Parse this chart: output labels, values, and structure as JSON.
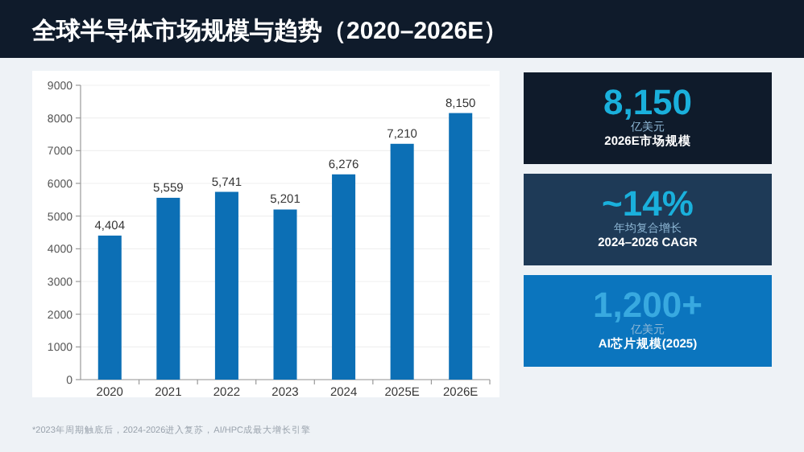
{
  "chart_data": [
    {
      "type": "bar",
      "title": "全球半导体市场规模与趋势（2020–2026E）",
      "categories": [
        "2020",
        "2021",
        "2022",
        "2023",
        "2024",
        "2025E",
        "2026E"
      ],
      "values": [
        4404,
        5559,
        5741,
        5201,
        6276,
        7210,
        8150
      ],
      "value_labels": [
        "4,404",
        "5,559",
        "5,741",
        "5,201",
        "6,276",
        "7,210",
        "8,150"
      ],
      "color": "#0c6fb5",
      "ylim": [
        0,
        9000
      ],
      "yticks": [
        0,
        1000,
        2000,
        3000,
        4000,
        5000,
        6000,
        7000,
        8000,
        9000
      ],
      "grid": "y",
      "annotations": [
        "*2023年周期触底后，2024-2026进入复苏，AI/HPC成最大增长引擎"
      ]
    },
    {
      "type": "other",
      "title": "8,150",
      "annotations": [
        "亿美元",
        "2026E市场规模"
      ],
      "color": "#0f1b2b"
    },
    {
      "type": "other",
      "title": "~14%",
      "annotations": [
        "年均复合增长",
        "2024–2026 CAGR"
      ],
      "color": "#1e3a57"
    },
    {
      "type": "other",
      "title": "1,200+",
      "annotations": [
        "亿美元",
        "AI芯片规模(2025)"
      ],
      "color": "#0b75be"
    }
  ]
}
